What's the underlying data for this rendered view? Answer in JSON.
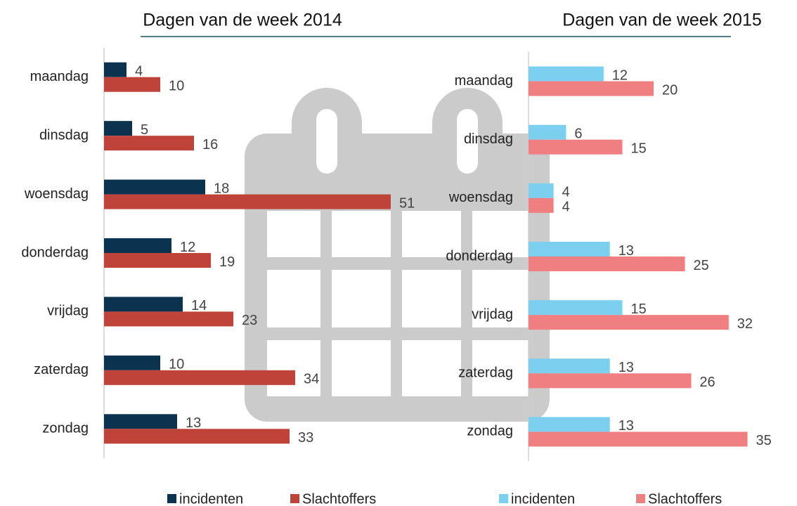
{
  "chart_data": [
    {
      "type": "bar",
      "horizontal": true,
      "title": "Dagen van de week 2014",
      "categories": [
        "maandag",
        "dinsdag",
        "woensdag",
        "donderdag",
        "vrijdag",
        "zaterdag",
        "zondag"
      ],
      "series": [
        {
          "name": "incidenten",
          "color": "#0b3350",
          "values": [
            4,
            5,
            18,
            12,
            14,
            10,
            13
          ]
        },
        {
          "name": "Slachtoffers",
          "color": "#c0433a",
          "values": [
            10,
            16,
            51,
            19,
            23,
            34,
            33
          ]
        }
      ],
      "xlim": [
        0,
        60
      ],
      "legend": "bottom"
    },
    {
      "type": "bar",
      "horizontal": true,
      "title": "Dagen van de week 2015",
      "categories": [
        "maandag",
        "dinsdag",
        "woensdag",
        "donderdag",
        "vrijdag",
        "zaterdag",
        "zondag"
      ],
      "series": [
        {
          "name": "incidenten",
          "color": "#7dcff0",
          "values": [
            12,
            6,
            4,
            13,
            15,
            13,
            13
          ]
        },
        {
          "name": "Slachtoffers",
          "color": "#ef7f80",
          "values": [
            20,
            15,
            4,
            25,
            32,
            26,
            35
          ]
        }
      ],
      "xlim": [
        0,
        40
      ],
      "legend": "bottom"
    }
  ]
}
